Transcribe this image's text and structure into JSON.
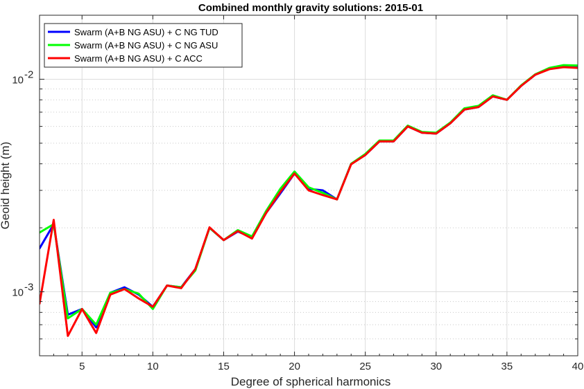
{
  "chart_data": {
    "type": "line",
    "title": "Combined monthly gravity solutions: 2015-01",
    "xlabel": "Degree of spherical harmonics",
    "ylabel": "Geoid height (m)",
    "xlim": [
      2,
      40
    ],
    "ylim": [
      0.0005,
      0.02
    ],
    "yscale": "log",
    "grid": true,
    "legend_position": "top-left",
    "xticks": [
      5,
      10,
      15,
      20,
      25,
      30,
      35,
      40
    ],
    "yticks": [
      {
        "value": 0.001,
        "base": "10",
        "exp": "-3"
      },
      {
        "value": 0.01,
        "base": "10",
        "exp": "-2"
      }
    ],
    "x": [
      2,
      3,
      4,
      5,
      6,
      7,
      8,
      9,
      10,
      11,
      12,
      13,
      14,
      15,
      16,
      17,
      18,
      19,
      20,
      21,
      22,
      23,
      24,
      25,
      26,
      27,
      28,
      29,
      30,
      31,
      32,
      33,
      34,
      35,
      36,
      37,
      38,
      39,
      40
    ],
    "series": [
      {
        "name": "Swarm (A+B NG ASU) + C NG TUD",
        "color": "#0000ff",
        "values": [
          0.0016,
          0.00208,
          0.00078,
          0.00083,
          0.00068,
          0.00099,
          0.00105,
          0.00097,
          0.00085,
          0.00107,
          0.00105,
          0.00128,
          0.002,
          0.00175,
          0.00192,
          0.0018,
          0.00235,
          0.0029,
          0.0036,
          0.00305,
          0.003,
          0.00272,
          0.004,
          0.0044,
          0.0051,
          0.0051,
          0.006,
          0.0056,
          0.00555,
          0.0062,
          0.0072,
          0.0074,
          0.0083,
          0.008,
          0.0093,
          0.0105,
          0.0112,
          0.0115,
          0.0114
        ]
      },
      {
        "name": "Swarm (A+B NG ASU) + C NG ASU",
        "color": "#00ff00",
        "values": [
          0.0019,
          0.00208,
          0.00075,
          0.00083,
          0.0007,
          0.00099,
          0.00103,
          0.00098,
          0.00083,
          0.00107,
          0.00105,
          0.00126,
          0.002,
          0.00175,
          0.00195,
          0.00182,
          0.0024,
          0.00305,
          0.00368,
          0.0031,
          0.00292,
          0.00272,
          0.004,
          0.00445,
          0.00515,
          0.00515,
          0.00605,
          0.00565,
          0.0056,
          0.00625,
          0.0073,
          0.0075,
          0.0084,
          0.008,
          0.00935,
          0.01055,
          0.0113,
          0.01165,
          0.0116
        ]
      },
      {
        "name": "Swarm (A+B NG ASU) + C ACC",
        "color": "#ff0000",
        "values": [
          0.00088,
          0.00218,
          0.00062,
          0.00083,
          0.00064,
          0.00097,
          0.00103,
          0.00093,
          0.00085,
          0.00107,
          0.00104,
          0.00128,
          0.00201,
          0.00175,
          0.00193,
          0.00178,
          0.00235,
          0.00295,
          0.0036,
          0.003,
          0.00285,
          0.00272,
          0.00398,
          0.0044,
          0.0051,
          0.0051,
          0.006,
          0.0056,
          0.00555,
          0.0062,
          0.0072,
          0.0074,
          0.0083,
          0.008,
          0.0093,
          0.0105,
          0.01115,
          0.0114,
          0.0113
        ]
      }
    ]
  }
}
